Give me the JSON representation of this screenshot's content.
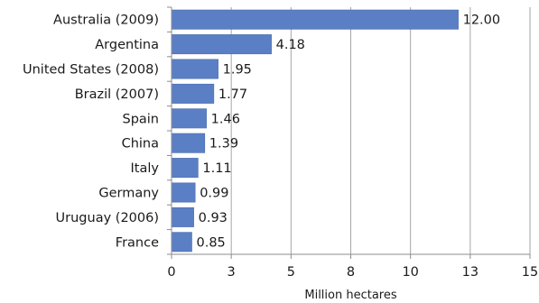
{
  "chart_data": {
    "type": "bar",
    "orientation": "horizontal",
    "categories": [
      "Australia (2009)",
      "Argentina",
      "United States (2008)",
      "Brazil (2007)",
      "Spain",
      "China",
      "Italy",
      "Germany",
      "Uruguay (2006)",
      "France"
    ],
    "values": [
      12.0,
      4.18,
      1.95,
      1.77,
      1.46,
      1.39,
      1.11,
      0.99,
      0.93,
      0.85
    ],
    "value_labels": [
      "12.00",
      "4.18",
      "1.95",
      "1.77",
      "1.46",
      "1.39",
      "1.11",
      "0.99",
      "0.93",
      "0.85"
    ],
    "title": "",
    "xlabel": "Million hectares",
    "ylabel": "",
    "xlim": [
      0,
      15
    ],
    "x_ticks": [
      0,
      2.5,
      5,
      7.5,
      10,
      12.5,
      15
    ],
    "x_tick_labels": [
      "0",
      "3",
      "5",
      "8",
      "10",
      "13",
      "15"
    ],
    "grid": "vertical",
    "legend": "none",
    "colors": {
      "bar": "#5b7fc4",
      "bar_edge": "#4a6db0",
      "grid": "#a6a6a6",
      "axis": "#8c8c8c",
      "text": "#1a1a1a"
    }
  }
}
